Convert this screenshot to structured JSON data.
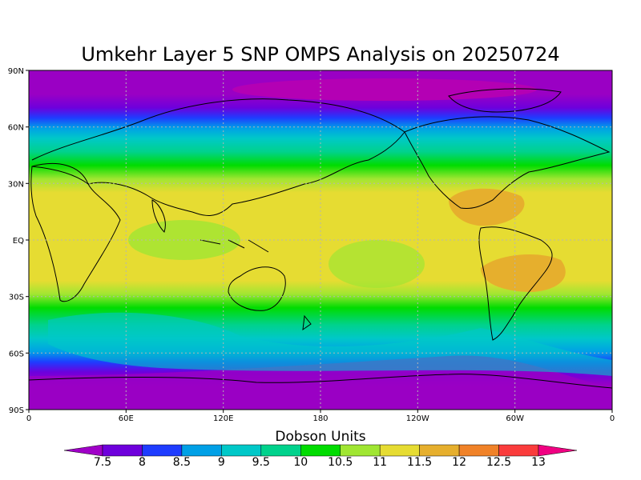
{
  "title": "Umkehr Layer 5 SNP OMPS Analysis on 20250724",
  "map": {
    "projection": "cylindrical equidistant",
    "lon_range": [
      "0",
      "0"
    ],
    "lat_range": [
      "90S",
      "90N"
    ],
    "lon_ticks": [
      "0",
      "60E",
      "120E",
      "180",
      "120W",
      "60W",
      "0"
    ],
    "lat_ticks": [
      "90N",
      "60N",
      "30N",
      "EQ",
      "30S",
      "60S",
      "90S"
    ],
    "grid": true
  },
  "colorbar": {
    "title": "Dobson Units",
    "labels": [
      "7.5",
      "8",
      "8.5",
      "9",
      "9.5",
      "10",
      "10.5",
      "11",
      "11.5",
      "12",
      "12.5",
      "13"
    ],
    "colors": [
      "#a000c8",
      "#6e00dc",
      "#1e3cff",
      "#00a0e6",
      "#00c8c8",
      "#00d28c",
      "#00dc00",
      "#a0e632",
      "#e6dc32",
      "#e6af2d",
      "#f08228",
      "#fa3c3c",
      "#f00082"
    ]
  },
  "chart_data": {
    "type": "heatmap",
    "title": "Umkehr Layer 5 SNP OMPS Analysis on 20250724",
    "variable_units": "Dobson Units",
    "value_range": [
      7.5,
      13
    ],
    "contour_levels": [
      7.5,
      8,
      8.5,
      9,
      9.5,
      10,
      10.5,
      11,
      11.5,
      12,
      12.5,
      13
    ],
    "zonal_bands": [
      {
        "lat": "90N-70N",
        "value": "< 7.5"
      },
      {
        "lat": "70N-60N",
        "value": "8-9"
      },
      {
        "lat": "60N-45N",
        "value": "9-10"
      },
      {
        "lat": "45N-35N",
        "value": "10-10.5"
      },
      {
        "lat": "35N-30S",
        "value": "11-11.5"
      },
      {
        "lat": "30S-45S",
        "value": "10-10.5"
      },
      {
        "lat": "45S-60S",
        "value": "9-10"
      },
      {
        "lat": "60S-70S",
        "value": "8-9"
      },
      {
        "lat": "70S-90S",
        "value": "< 7.5"
      }
    ],
    "local_maxima": [
      {
        "region": "Caribbean / Central America",
        "value": "12-12.5"
      },
      {
        "region": "Central South America",
        "value": "11.5-12"
      }
    ]
  }
}
